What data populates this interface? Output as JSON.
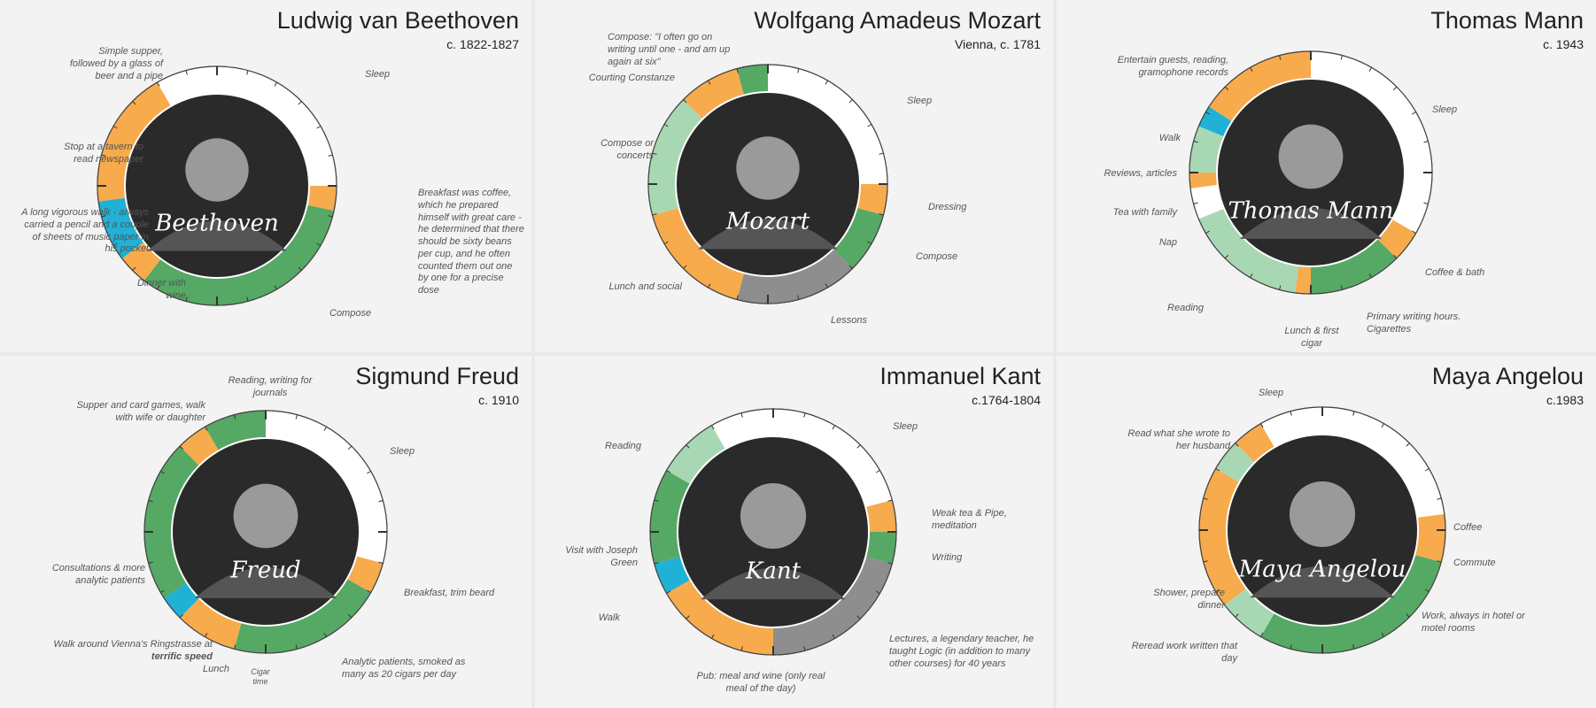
{
  "colors": {
    "sleep": "#ffffff",
    "leisure": "#f7ab4c",
    "creative": "#56a865",
    "creative_light": "#a8d8b3",
    "exercise": "#1fb1d6",
    "day_job": "#8e8e8e",
    "portrait_bg": "#2a2a2a"
  },
  "panels": [
    {
      "name": "Ludwig van Beethoven",
      "date": "c. 1822-1827",
      "signature": "Beethoven",
      "segments": [
        {
          "category": "sleep",
          "start": 0,
          "end": 6
        },
        {
          "category": "leisure",
          "start": 6,
          "end": 6.8
        },
        {
          "category": "creative",
          "start": 6.8,
          "end": 14.5
        },
        {
          "category": "leisure",
          "start": 14.5,
          "end": 15.5
        },
        {
          "category": "exercise",
          "start": 15.5,
          "end": 17.5
        },
        {
          "category": "leisure",
          "start": 17.5,
          "end": 22
        },
        {
          "category": "sleep",
          "start": 22,
          "end": 24
        }
      ],
      "labels": [
        {
          "text": "Sleep"
        },
        {
          "text": "Breakfast was coffee, which he prepared himself with great care - he determined that there should be sixty beans per cup, and he often counted them out one by one for a precise dose"
        },
        {
          "text": "Compose"
        },
        {
          "text": "Dinner with wine"
        },
        {
          "text": "A long vigorous walk - always carried a pencil and a couple of sheets of music paper in his pocket"
        },
        {
          "text": "Stop at a tavern to read newspaper"
        },
        {
          "text": "Simple supper, followed by a glass of beer and a pipe"
        }
      ]
    },
    {
      "name": "Wolfgang Amadeus Mozart",
      "date": "Vienna, c. 1781",
      "signature": "Mozart",
      "segments": [
        {
          "category": "sleep",
          "start": 0,
          "end": 6
        },
        {
          "category": "leisure",
          "start": 6,
          "end": 7
        },
        {
          "category": "creative",
          "start": 7,
          "end": 9
        },
        {
          "category": "day_job",
          "start": 9,
          "end": 13
        },
        {
          "category": "leisure",
          "start": 13,
          "end": 17
        },
        {
          "category": "creative_light",
          "start": 17,
          "end": 21
        },
        {
          "category": "leisure",
          "start": 21,
          "end": 23
        },
        {
          "category": "creative",
          "start": 23,
          "end": 24
        }
      ],
      "labels": [
        {
          "text": "Compose: \"I often go on writing until one - and am up again at six\""
        },
        {
          "text": "Sleep"
        },
        {
          "text": "Dressing"
        },
        {
          "text": "Compose"
        },
        {
          "text": "Lessons"
        },
        {
          "text": "Lunch and social"
        },
        {
          "text": "Compose or concerts"
        },
        {
          "text": "Courting Constanze"
        }
      ]
    },
    {
      "name": "Thomas Mann",
      "date": "c. 1943",
      "signature": "Thomas Mann",
      "segments": [
        {
          "category": "sleep",
          "start": 0,
          "end": 8
        },
        {
          "category": "leisure",
          "start": 8,
          "end": 9
        },
        {
          "category": "creative",
          "start": 9,
          "end": 12
        },
        {
          "category": "leisure",
          "start": 12,
          "end": 12.5
        },
        {
          "category": "creative_light",
          "start": 12.5,
          "end": 16.5
        },
        {
          "category": "sleep",
          "start": 16.5,
          "end": 17.5
        },
        {
          "category": "leisure",
          "start": 17.5,
          "end": 18
        },
        {
          "category": "creative_light",
          "start": 18,
          "end": 19.5
        },
        {
          "category": "exercise",
          "start": 19.5,
          "end": 20.2
        },
        {
          "category": "leisure",
          "start": 20.2,
          "end": 24
        }
      ],
      "labels": [
        {
          "text": "Entertain guests, reading, gramophone records"
        },
        {
          "text": "Sleep"
        },
        {
          "text": "Walk"
        },
        {
          "text": "Reviews, articles"
        },
        {
          "text": "Tea with family"
        },
        {
          "text": "Nap"
        },
        {
          "text": "Coffee & bath"
        },
        {
          "text": "Reading"
        },
        {
          "text": "Primary writing hours. Cigarettes"
        },
        {
          "text": "Lunch & first cigar"
        }
      ]
    },
    {
      "name": "Sigmund Freud",
      "date": "c. 1910",
      "signature": "Freud",
      "segments": [
        {
          "category": "sleep",
          "start": 0,
          "end": 7
        },
        {
          "category": "leisure",
          "start": 7,
          "end": 8
        },
        {
          "category": "creative",
          "start": 8,
          "end": 13
        },
        {
          "category": "leisure",
          "start": 13,
          "end": 15
        },
        {
          "category": "exercise",
          "start": 15,
          "end": 15.8
        },
        {
          "category": "creative",
          "start": 15.8,
          "end": 21
        },
        {
          "category": "leisure",
          "start": 21,
          "end": 22
        },
        {
          "category": "creative",
          "start": 22,
          "end": 24
        }
      ],
      "labels": [
        {
          "text": "Reading, writing for journals"
        },
        {
          "text": "Supper and card games, walk with wife or daughter"
        },
        {
          "text": "Sleep"
        },
        {
          "text": "Breakfast, trim beard"
        },
        {
          "text": "Analytic patients, smoked as many as 20 cigars per day"
        },
        {
          "text": "Consultations & more analytic patients"
        },
        {
          "text": "Walk around Vienna's Ringstrasse at "
        },
        {
          "text": "terrific speed"
        },
        {
          "text": "Lunch"
        },
        {
          "text": "Cigar time"
        }
      ]
    },
    {
      "name": "Immanuel Kant",
      "date": "c.1764-1804",
      "signature": "Kant",
      "segments": [
        {
          "category": "sleep",
          "start": 0,
          "end": 5
        },
        {
          "category": "leisure",
          "start": 5,
          "end": 6
        },
        {
          "category": "creative",
          "start": 6,
          "end": 7
        },
        {
          "category": "day_job",
          "start": 7,
          "end": 12
        },
        {
          "category": "leisure",
          "start": 12,
          "end": 16
        },
        {
          "category": "exercise",
          "start": 16,
          "end": 17
        },
        {
          "category": "creative",
          "start": 17,
          "end": 20
        },
        {
          "category": "creative_light",
          "start": 20,
          "end": 22
        },
        {
          "category": "sleep",
          "start": 22,
          "end": 24
        }
      ],
      "labels": [
        {
          "text": "Sleep"
        },
        {
          "text": "Weak tea & Pipe, meditation"
        },
        {
          "text": "Writing"
        },
        {
          "text": "Lectures, a legendary teacher, he taught Logic (in addition to many other courses) for 40 years"
        },
        {
          "text": "Pub: meal and wine (only real meal of the day)"
        },
        {
          "text": "Walk"
        },
        {
          "text": "Visit with Joseph Green"
        },
        {
          "text": "Reading"
        }
      ]
    },
    {
      "name": "Maya Angelou",
      "date": "c.1983",
      "signature": "Maya Angelou",
      "segments": [
        {
          "category": "sleep",
          "start": 0,
          "end": 5.5
        },
        {
          "category": "leisure",
          "start": 5.5,
          "end": 7
        },
        {
          "category": "creative",
          "start": 7,
          "end": 14
        },
        {
          "category": "creative_light",
          "start": 14,
          "end": 15.5
        },
        {
          "category": "leisure",
          "start": 15.5,
          "end": 20
        },
        {
          "category": "creative_light",
          "start": 20,
          "end": 21
        },
        {
          "category": "leisure",
          "start": 21,
          "end": 22
        },
        {
          "category": "sleep",
          "start": 22,
          "end": 24
        }
      ],
      "labels": [
        {
          "text": "Sleep"
        },
        {
          "text": "Read what she wrote to her husband"
        },
        {
          "text": "Coffee"
        },
        {
          "text": "Commute"
        },
        {
          "text": "Work, always in hotel or motel rooms"
        },
        {
          "text": "Reread work written that day"
        },
        {
          "text": "Shower, prepare dinner"
        }
      ]
    }
  ]
}
